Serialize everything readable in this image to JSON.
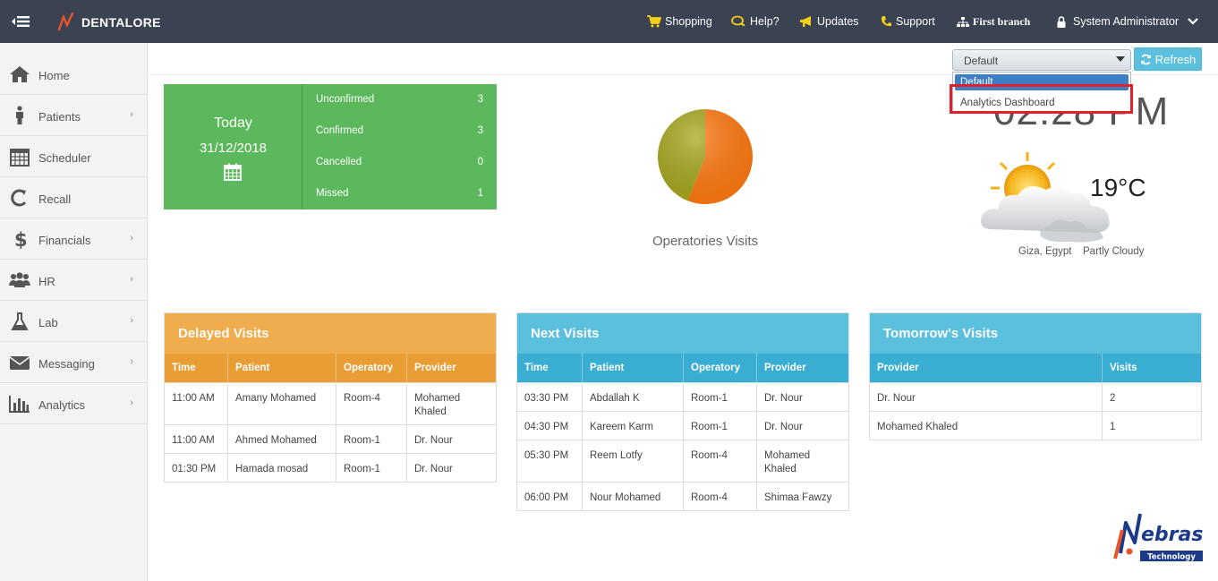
{
  "app": {
    "brand": "DENTALORE"
  },
  "topnav": {
    "shopping": "Shopping",
    "help": "Help?",
    "updates": "Updates",
    "support": "Support",
    "branch": "First branch",
    "user": "System Administrator"
  },
  "sidebar": {
    "items": [
      {
        "label": "Home",
        "icon": "home-icon"
      },
      {
        "label": "Patients",
        "icon": "user-icon"
      },
      {
        "label": "Scheduler",
        "icon": "calendar-icon"
      },
      {
        "label": "Recall",
        "icon": "recall-icon"
      },
      {
        "label": "Financials",
        "icon": "dollar-icon"
      },
      {
        "label": "HR",
        "icon": "users-icon"
      },
      {
        "label": "Lab",
        "icon": "flask-icon"
      },
      {
        "label": "Messaging",
        "icon": "envelope-icon"
      },
      {
        "label": "Analytics",
        "icon": "bar-chart-icon"
      }
    ]
  },
  "dashboard_select": {
    "value": "Default",
    "options": [
      "Default",
      "Analytics Dashboard"
    ]
  },
  "refresh_label": "Refresh",
  "today": {
    "label": "Today",
    "date": "31/12/2018",
    "stats": [
      {
        "label": "Unconfirmed",
        "value": "3"
      },
      {
        "label": "Confirmed",
        "value": "3"
      },
      {
        "label": "Cancelled",
        "value": "0"
      },
      {
        "label": "Missed",
        "value": "1"
      }
    ]
  },
  "chart_data": {
    "type": "pie",
    "title": "Operatories Visits",
    "slices": [
      {
        "value": 56,
        "color": "#ff7a12"
      },
      {
        "value": 44,
        "color": "#a7a81e"
      }
    ]
  },
  "clock": {
    "time": "02:28 PM"
  },
  "weather": {
    "temp": "19°C",
    "location": "Giza, Egypt",
    "condition": "Partly Cloudy"
  },
  "delayed": {
    "title": "Delayed Visits",
    "headers": [
      "Time",
      "Patient",
      "Operatory",
      "Provider"
    ],
    "rows": [
      [
        "11:00 AM",
        "Amany Mohamed",
        "Room-4",
        "Mohamed Khaled"
      ],
      [
        "11:00 AM",
        "Ahmed Mohamed",
        "Room-1",
        "Dr. Nour"
      ],
      [
        "01:30 PM",
        "Hamada mosad",
        "Room-1",
        "Dr. Nour"
      ]
    ]
  },
  "next": {
    "title": "Next Visits",
    "headers": [
      "Time",
      "Patient",
      "Operatory",
      "Provider"
    ],
    "rows": [
      [
        "03:30 PM",
        "Abdallah K",
        "Room-1",
        "Dr. Nour"
      ],
      [
        "04:30 PM",
        "Kareem Karm",
        "Room-1",
        "Dr. Nour"
      ],
      [
        "05:30 PM",
        "Reem Lotfy",
        "Room-4",
        "Mohamed Khaled"
      ],
      [
        "06:00 PM",
        "Nour Mohamed",
        "Room-4",
        "Shimaa Fawzy"
      ]
    ]
  },
  "tomorrow": {
    "title": "Tomorrow's Visits",
    "headers": [
      "Provider",
      "Visits"
    ],
    "rows": [
      [
        "Dr. Nour",
        "2"
      ],
      [
        "Mohamed Khaled",
        "1"
      ]
    ]
  },
  "footer_logo": {
    "name": "ebras",
    "sub": "Technology"
  }
}
